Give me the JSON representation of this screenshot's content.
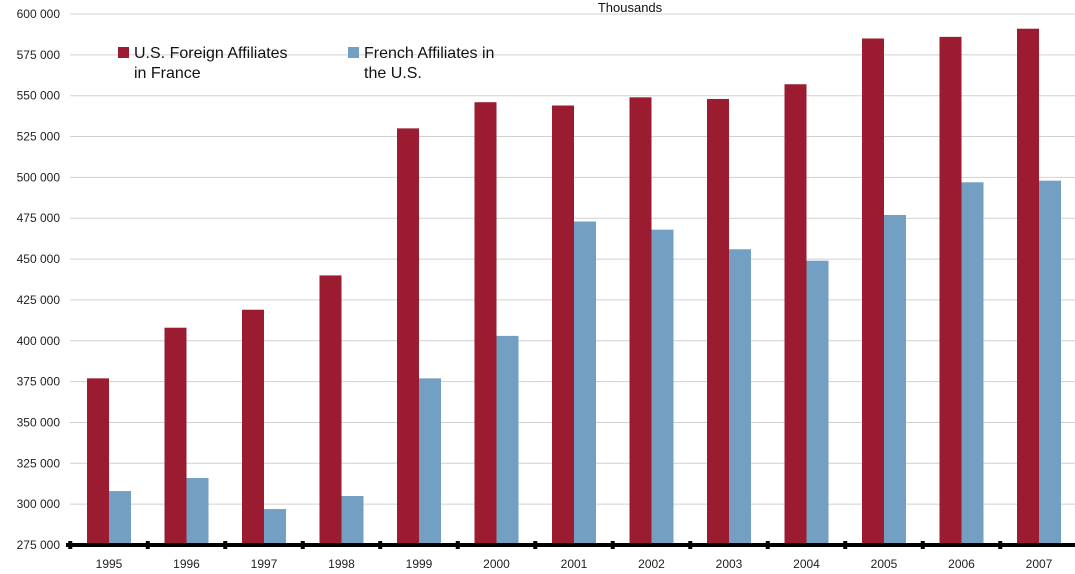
{
  "chart_data": {
    "type": "bar",
    "unit_label": "Thousands",
    "categories": [
      "1995",
      "1996",
      "1997",
      "1998",
      "1999",
      "2000",
      "2001",
      "2002",
      "2003",
      "2004",
      "2005",
      "2006",
      "2007"
    ],
    "series": [
      {
        "name": "U.S. Foreign Affiliates in France",
        "name_lines": [
          "U.S. Foreign Affiliates",
          "in France"
        ],
        "color": "#9b1b30",
        "values": [
          377000,
          408000,
          419000,
          440000,
          530000,
          546000,
          544000,
          549000,
          548000,
          557000,
          585000,
          586000,
          591000
        ]
      },
      {
        "name": "French Affiliates in the U.S.",
        "name_lines": [
          "French Affiliates in",
          "the U.S."
        ],
        "color": "#729fc2",
        "values": [
          308000,
          316000,
          297000,
          305000,
          377000,
          403000,
          473000,
          468000,
          456000,
          449000,
          477000,
          497000,
          498000
        ]
      }
    ],
    "ylim": [
      275000,
      600000
    ],
    "yticks": [
      275000,
      300000,
      325000,
      350000,
      375000,
      400000,
      425000,
      450000,
      475000,
      500000,
      525000,
      550000,
      575000,
      600000
    ],
    "ytick_labels": [
      "275 000",
      "300 000",
      "325 000",
      "350 000",
      "375 000",
      "400 000",
      "425 000",
      "450 000",
      "475 000",
      "500 000",
      "525 000",
      "550 000",
      "575 000",
      "600 000"
    ],
    "grid": true,
    "legend_position": "top-left",
    "title": "",
    "xlabel": "",
    "ylabel": ""
  }
}
